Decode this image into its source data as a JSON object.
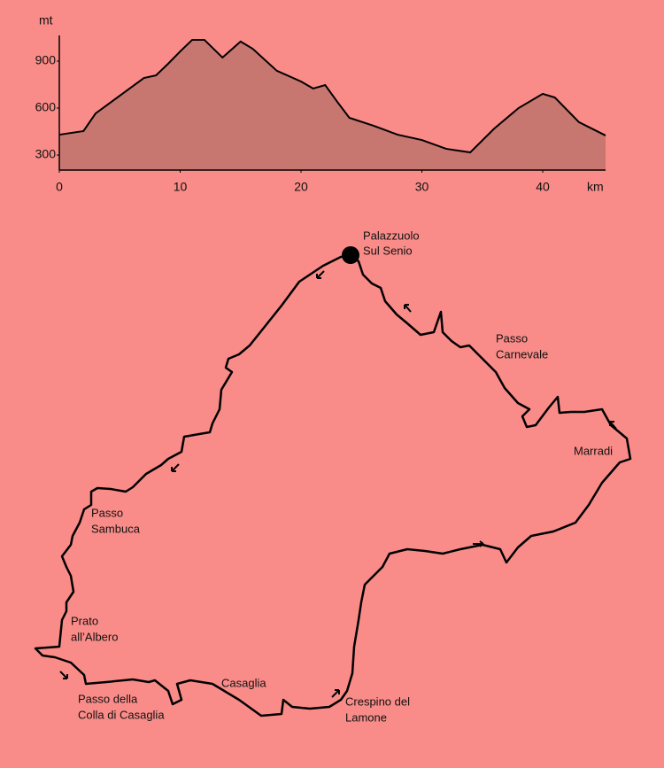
{
  "chart_data": {
    "type": "area",
    "x_label": "km",
    "y_label": "mt",
    "x": [
      0,
      2,
      3,
      5,
      7,
      8,
      9,
      10,
      11,
      12,
      13.5,
      15,
      16,
      18,
      20,
      21,
      22,
      23,
      24,
      26,
      28,
      30,
      32,
      34,
      36,
      38,
      40,
      41,
      43,
      45.2
    ],
    "values": [
      430,
      453,
      566,
      679,
      792,
      809,
      883,
      962,
      1036,
      1036,
      923,
      1025,
      979,
      838,
      770,
      725,
      747,
      640,
      538,
      487,
      430,
      396,
      340,
      317,
      470,
      600,
      691,
      668,
      510,
      425
    ],
    "color": "#c77670",
    "xlim": [
      0,
      45.2
    ],
    "ylim": [
      204,
      1064
    ],
    "xticks": [
      0,
      10,
      20,
      30,
      40
    ],
    "yticks": [
      300,
      600,
      900
    ]
  },
  "map": {
    "places": [
      {
        "lines": [
          "Palazzuolo",
          "Sul Senio"
        ]
      },
      {
        "lines": [
          "Passo",
          "Carnevale"
        ]
      },
      {
        "lines": [
          "Marradi"
        ]
      },
      {
        "lines": [
          "Passo",
          "Sambuca"
        ]
      },
      {
        "lines": [
          "Prato",
          "all’Albero"
        ]
      },
      {
        "lines": [
          "Passo della",
          "Colla di Casaglia"
        ]
      },
      {
        "lines": [
          "Casaglia"
        ]
      },
      {
        "lines": [
          "Crespino del",
          "Lamone"
        ]
      }
    ]
  }
}
